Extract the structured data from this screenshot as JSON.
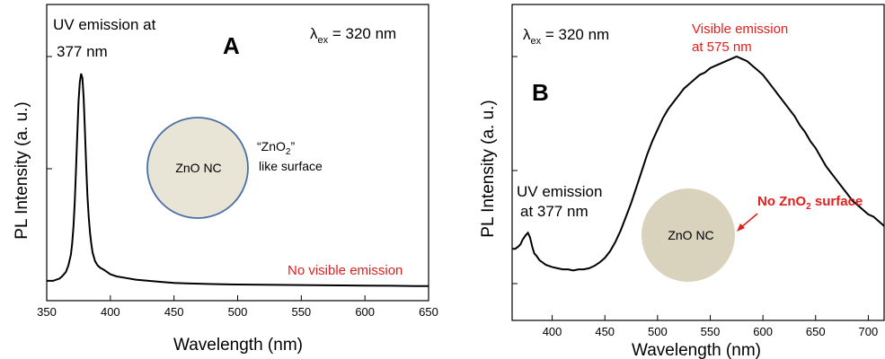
{
  "chart_data": [
    {
      "panel": "A",
      "type": "line",
      "xlabel": "Wavelength (nm)",
      "ylabel": "PL Intensity (a. u.)",
      "xlim": [
        350,
        650
      ],
      "ylim": [
        0,
        1
      ],
      "xticks": [
        350,
        400,
        450,
        500,
        550,
        600,
        650
      ],
      "excitation": {
        "prefix": "λ",
        "sub": "ex",
        "rest": " = 320 nm"
      },
      "peak_note": [
        "UV emission at",
        "377 nm"
      ],
      "note_right": "No visible emission",
      "circle_label": "ZnO NC",
      "surface_note": {
        "line1_pre": "“ZnO",
        "line1_sub": "2",
        "line1_post": "”",
        "line2": "like surface"
      },
      "circle_colors": {
        "fill": "#e8e4d6",
        "stroke": "#4a6fa5"
      },
      "series": [
        {
          "color": "#000000",
          "x": [
            350,
            355,
            360,
            362,
            365,
            367,
            369,
            370,
            371,
            372,
            373,
            374,
            375,
            376,
            377,
            378,
            379,
            380,
            381,
            382,
            383,
            384,
            385,
            386,
            388,
            390,
            392,
            395,
            400,
            405,
            410,
            420,
            430,
            440,
            450,
            460,
            480,
            500,
            520,
            540,
            560,
            580,
            600,
            620,
            640,
            650
          ],
          "y": [
            0.05,
            0.05,
            0.06,
            0.07,
            0.09,
            0.12,
            0.17,
            0.22,
            0.3,
            0.41,
            0.56,
            0.72,
            0.87,
            0.96,
            1.0,
            0.98,
            0.89,
            0.74,
            0.58,
            0.44,
            0.34,
            0.27,
            0.22,
            0.18,
            0.14,
            0.12,
            0.11,
            0.1,
            0.08,
            0.07,
            0.065,
            0.055,
            0.05,
            0.045,
            0.04,
            0.038,
            0.035,
            0.033,
            0.032,
            0.031,
            0.03,
            0.029,
            0.028,
            0.027,
            0.026,
            0.026
          ]
        }
      ]
    },
    {
      "panel": "B",
      "type": "line",
      "xlabel": "Wavelength (nm)",
      "ylabel": "PL Intensity (a. u.)",
      "xlim": [
        362,
        715
      ],
      "ylim": [
        0,
        1
      ],
      "xticks": [
        400,
        450,
        500,
        550,
        600,
        650,
        700
      ],
      "excitation": {
        "prefix": "λ",
        "sub": "ex",
        "rest": " = 320 nm"
      },
      "peak_note": [
        "Visible emission",
        "at 575 nm"
      ],
      "uv_note": [
        "UV emission",
        "at 377 nm"
      ],
      "surface_note": {
        "pre": "No ZnO",
        "sub": "2",
        "post": " surface"
      },
      "circle_label": "ZnO NC",
      "circle_colors": {
        "fill": "#d9d2bd"
      },
      "series": [
        {
          "color": "#000000",
          "x": [
            362,
            365,
            368,
            370,
            372,
            375,
            377,
            379,
            381,
            383,
            385,
            388,
            391,
            394,
            397,
            400,
            405,
            410,
            415,
            420,
            425,
            430,
            435,
            440,
            445,
            450,
            455,
            460,
            465,
            470,
            475,
            480,
            485,
            490,
            495,
            500,
            505,
            510,
            515,
            520,
            525,
            530,
            535,
            540,
            545,
            550,
            555,
            560,
            565,
            570,
            575,
            580,
            585,
            590,
            595,
            600,
            605,
            610,
            615,
            620,
            625,
            630,
            635,
            640,
            645,
            650,
            655,
            660,
            665,
            670,
            675,
            680,
            685,
            690,
            695,
            700,
            705,
            710,
            715
          ],
          "y": [
            0.16,
            0.16,
            0.17,
            0.18,
            0.2,
            0.22,
            0.23,
            0.21,
            0.17,
            0.14,
            0.13,
            0.11,
            0.1,
            0.09,
            0.085,
            0.08,
            0.075,
            0.07,
            0.07,
            0.065,
            0.07,
            0.07,
            0.075,
            0.085,
            0.1,
            0.12,
            0.15,
            0.19,
            0.24,
            0.3,
            0.36,
            0.43,
            0.5,
            0.57,
            0.63,
            0.68,
            0.73,
            0.77,
            0.8,
            0.83,
            0.86,
            0.88,
            0.9,
            0.92,
            0.93,
            0.95,
            0.96,
            0.97,
            0.98,
            0.99,
            1.0,
            0.99,
            0.98,
            0.96,
            0.94,
            0.92,
            0.89,
            0.86,
            0.83,
            0.8,
            0.77,
            0.74,
            0.7,
            0.67,
            0.63,
            0.6,
            0.56,
            0.52,
            0.49,
            0.46,
            0.43,
            0.4,
            0.37,
            0.35,
            0.33,
            0.31,
            0.3,
            0.28,
            0.26
          ]
        }
      ]
    }
  ]
}
